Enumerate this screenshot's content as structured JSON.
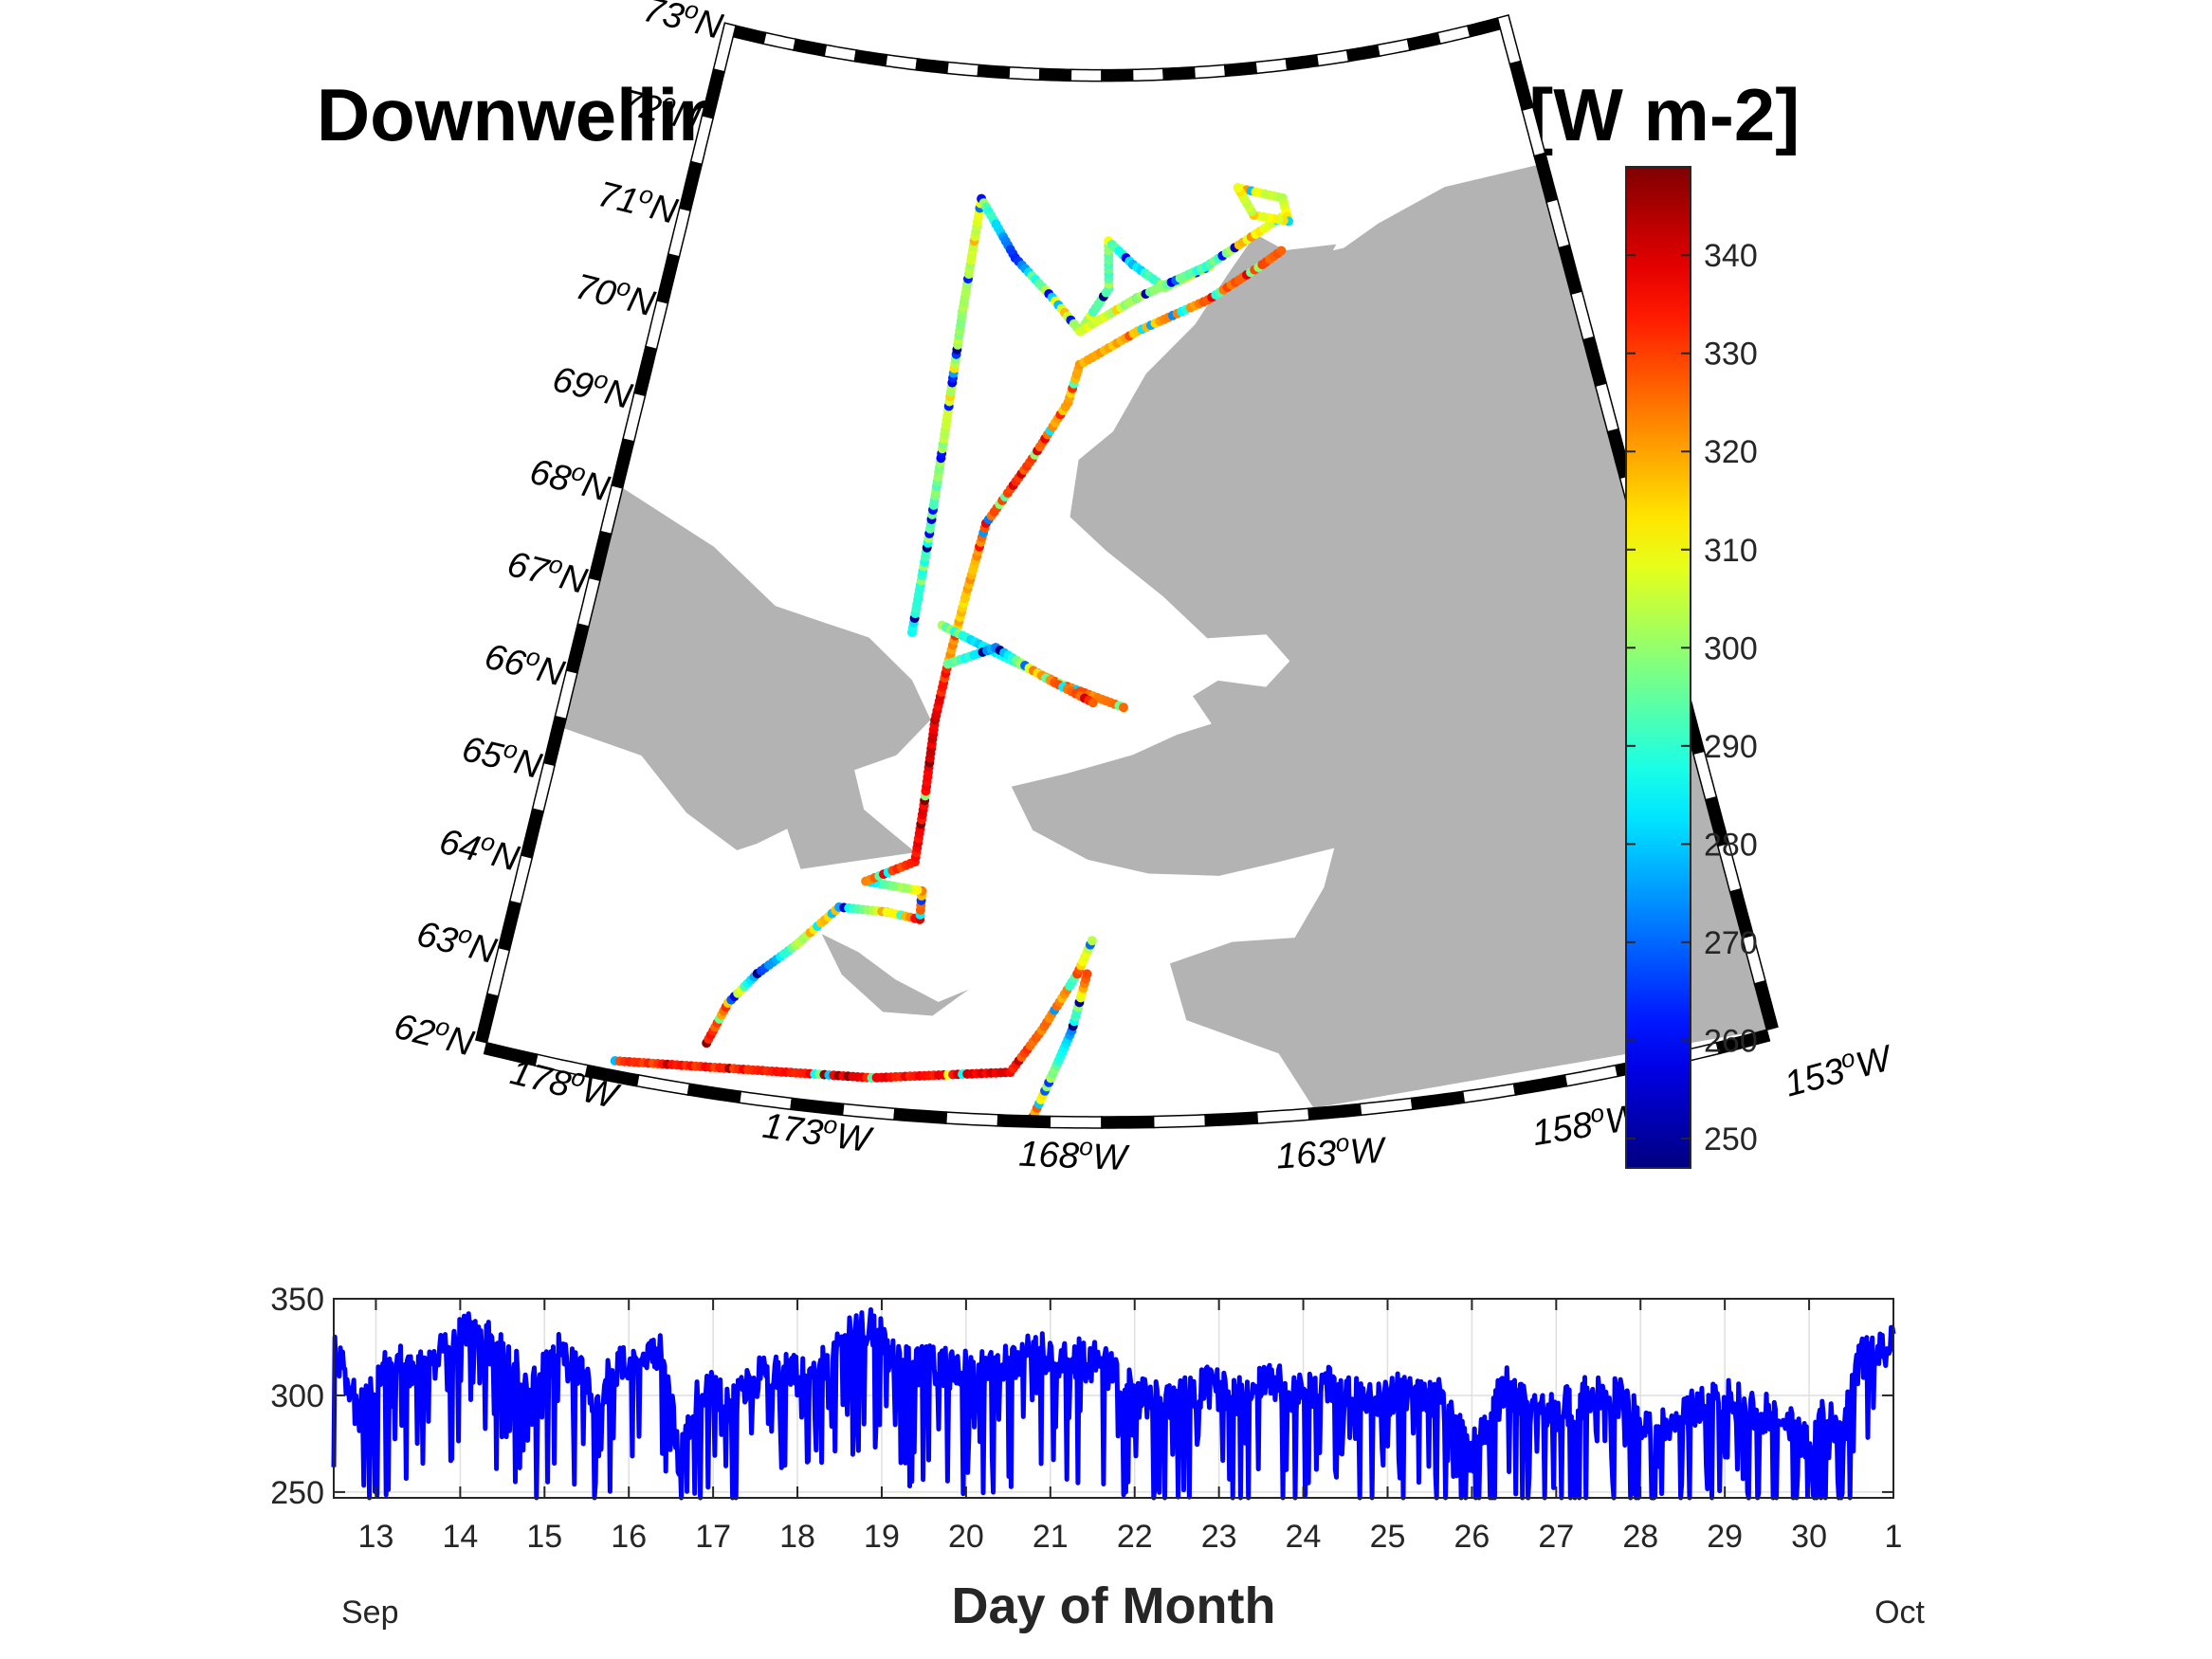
{
  "chart_data": [
    {
      "type": "scatter",
      "subtype": "map-track",
      "title": "Downwelling Longwave Radiation [W m-2]",
      "map": {
        "lat_range": [
          62,
          73
        ],
        "lon_range": [
          -178,
          -153
        ],
        "lat_labels": [
          "62",
          "63",
          "64",
          "65",
          "66",
          "67",
          "68",
          "69",
          "70",
          "71",
          "72",
          "73"
        ],
        "lon_labels": [
          "178",
          "173",
          "168",
          "163",
          "158",
          "153"
        ],
        "lat_suffix": "N",
        "lon_suffix": "W",
        "degree_mark": "o",
        "land_color": "#b3b3b3"
      },
      "colorbar": {
        "colormap": "jet",
        "range": [
          247,
          349
        ],
        "ticks": [
          250,
          260,
          270,
          280,
          290,
          300,
          310,
          320,
          330,
          340
        ]
      },
      "track_segments": [
        {
          "points": [
            [
              -175.5,
              62.1
            ],
            [
              -170.5,
              62.3
            ],
            [
              -167.8,
              62.45
            ]
          ],
          "values": [
            331,
            336,
            338
          ]
        },
        {
          "points": [
            [
              -167.8,
              62.45
            ],
            [
              -167.2,
              62.9
            ],
            [
              -166.5,
              63.5
            ],
            [
              -166.2,
              63.85
            ]
          ],
          "values": [
            332,
            326,
            318,
            300
          ]
        },
        {
          "points": [
            [
              -167.4,
              61.9
            ],
            [
              -167.0,
              62.4
            ],
            [
              -166.6,
              62.9
            ],
            [
              -166.3,
              63.5
            ]
          ],
          "values": [
            324,
            300,
            274,
            330
          ]
        },
        {
          "points": [
            [
              -173.8,
              62.45
            ],
            [
              -173.5,
              62.9
            ],
            [
              -173.0,
              63.25
            ]
          ],
          "values": [
            336,
            318,
            270
          ]
        },
        {
          "points": [
            [
              -173.0,
              63.25
            ],
            [
              -172.3,
              63.6
            ],
            [
              -171.5,
              64.05
            ]
          ],
          "values": [
            262,
            300,
            322
          ]
        },
        {
          "points": [
            [
              -171.5,
              64.05
            ],
            [
              -170.5,
              64.05
            ],
            [
              -169.8,
              64.0
            ]
          ],
          "values": [
            280,
            310,
            326
          ]
        },
        {
          "points": [
            [
              -169.8,
              64.0
            ],
            [
              -169.8,
              64.3
            ],
            [
              -171.0,
              64.35
            ]
          ],
          "values": [
            336,
            312,
            282
          ]
        },
        {
          "points": [
            [
              -171.0,
              64.35
            ],
            [
              -170.0,
              64.6
            ],
            [
              -169.9,
              65.2
            ],
            [
              -169.8,
              66.1
            ],
            [
              -169.6,
              66.7
            ]
          ],
          "values": [
            322,
            334,
            338,
            340,
            330
          ]
        },
        {
          "points": [
            [
              -169.6,
              66.7
            ],
            [
              -169.3,
              67.4
            ],
            [
              -168.9,
              68.2
            ],
            [
              -167.8,
              68.9
            ],
            [
              -166.9,
              69.5
            ],
            [
              -166.6,
              69.9
            ]
          ],
          "values": [
            322,
            316,
            326,
            330,
            318,
            322
          ]
        },
        {
          "points": [
            [
              -166.6,
              69.9
            ],
            [
              -165.0,
              70.25
            ],
            [
              -163.0,
              70.55
            ],
            [
              -161.5,
              70.85
            ],
            [
              -160.8,
              71.0
            ]
          ],
          "values": [
            320,
            316,
            326,
            328,
            330
          ]
        },
        {
          "points": [
            [
              -169.8,
              67.1
            ],
            [
              -168.5,
              66.85
            ],
            [
              -167.0,
              66.55
            ],
            [
              -165.5,
              66.3
            ]
          ],
          "values": [
            290,
            280,
            328,
            322
          ]
        },
        {
          "points": [
            [
              -169.6,
              66.7
            ],
            [
              -168.5,
              66.9
            ],
            [
              -167.3,
              66.6
            ],
            [
              -166.2,
              66.35
            ]
          ],
          "values": [
            300,
            272,
            325,
            330
          ]
        },
        {
          "points": [
            [
              -170.5,
              67.0
            ],
            [
              -170.3,
              68.0
            ],
            [
              -170.1,
              69.2
            ],
            [
              -169.9,
              70.4
            ],
            [
              -169.6,
              71.6
            ]
          ],
          "values": [
            286,
            290,
            304,
            300,
            310
          ]
        },
        {
          "points": [
            [
              -169.6,
              71.6
            ],
            [
              -168.5,
              71.0
            ],
            [
              -167.4,
              70.6
            ],
            [
              -166.6,
              70.25
            ]
          ],
          "values": [
            300,
            262,
            310,
            300
          ]
        },
        {
          "points": [
            [
              -166.6,
              70.25
            ],
            [
              -165.8,
              70.7
            ],
            [
              -165.8,
              71.2
            ],
            [
              -165.1,
              70.95
            ],
            [
              -164.2,
              70.7
            ],
            [
              -162.9,
              70.9
            ]
          ],
          "values": [
            300,
            290,
            298,
            280,
            300,
            308
          ]
        },
        {
          "points": [
            [
              -166.6,
              70.25
            ],
            [
              -165.0,
              70.6
            ],
            [
              -163.0,
              70.9
            ],
            [
              -161.5,
              71.2
            ],
            [
              -160.7,
              71.35
            ]
          ],
          "values": [
            310,
            300,
            290,
            312,
            308
          ]
        },
        {
          "points": [
            [
              -161.9,
              71.7
            ],
            [
              -160.6,
              71.55
            ],
            [
              -160.5,
              71.3
            ],
            [
              -161.5,
              71.4
            ],
            [
              -161.9,
              71.7
            ]
          ],
          "values": [
            310,
            306,
            312,
            304,
            312
          ]
        }
      ]
    },
    {
      "type": "line",
      "xlabel": "Day of Month",
      "x_tick_labels": [
        "13",
        "14",
        "15",
        "16",
        "17",
        "18",
        "19",
        "20",
        "21",
        "22",
        "23",
        "24",
        "25",
        "26",
        "27",
        "28",
        "29",
        "30",
        "1"
      ],
      "x_start_label": "Sep",
      "x_end_label": "Oct",
      "xlim": [
        "2019-09-12T12:00",
        "2019-10-01T00:00"
      ],
      "ylim": [
        247,
        350
      ],
      "y_ticks": [
        250,
        300,
        350
      ],
      "grid": true,
      "color": "#0000ff",
      "series": [
        {
          "day_of_month": [
            12.5,
            12.8,
            13.2,
            13.6,
            14.0,
            14.4,
            14.8,
            15.2,
            15.6,
            16.0,
            16.4,
            16.6,
            16.8,
            17.0,
            17.2,
            17.6,
            18.0,
            18.4,
            18.6,
            18.8,
            19.0,
            19.2,
            19.6,
            20.0,
            20.4,
            20.8,
            21.2,
            21.6,
            22.0,
            22.4,
            22.8,
            23.2,
            23.6,
            24.0,
            24.4,
            24.8,
            25.2,
            25.6,
            26.0,
            26.4,
            26.8,
            27.2,
            27.6,
            28.0,
            28.4,
            28.8,
            29.2,
            29.6,
            30.0,
            30.2,
            30.4,
            30.6,
            30.8,
            31.0
          ],
          "values": [
            325,
            290,
            318,
            312,
            335,
            326,
            305,
            322,
            300,
            320,
            325,
            265,
            300,
            305,
            295,
            312,
            310,
            318,
            332,
            338,
            330,
            315,
            316,
            312,
            315,
            322,
            320,
            316,
            300,
            295,
            305,
            300,
            308,
            300,
            306,
            296,
            302,
            300,
            270,
            305,
            290,
            295,
            305,
            288,
            285,
            300,
            295,
            290,
            275,
            290,
            280,
            318,
            322,
            330
          ]
        }
      ]
    }
  ]
}
